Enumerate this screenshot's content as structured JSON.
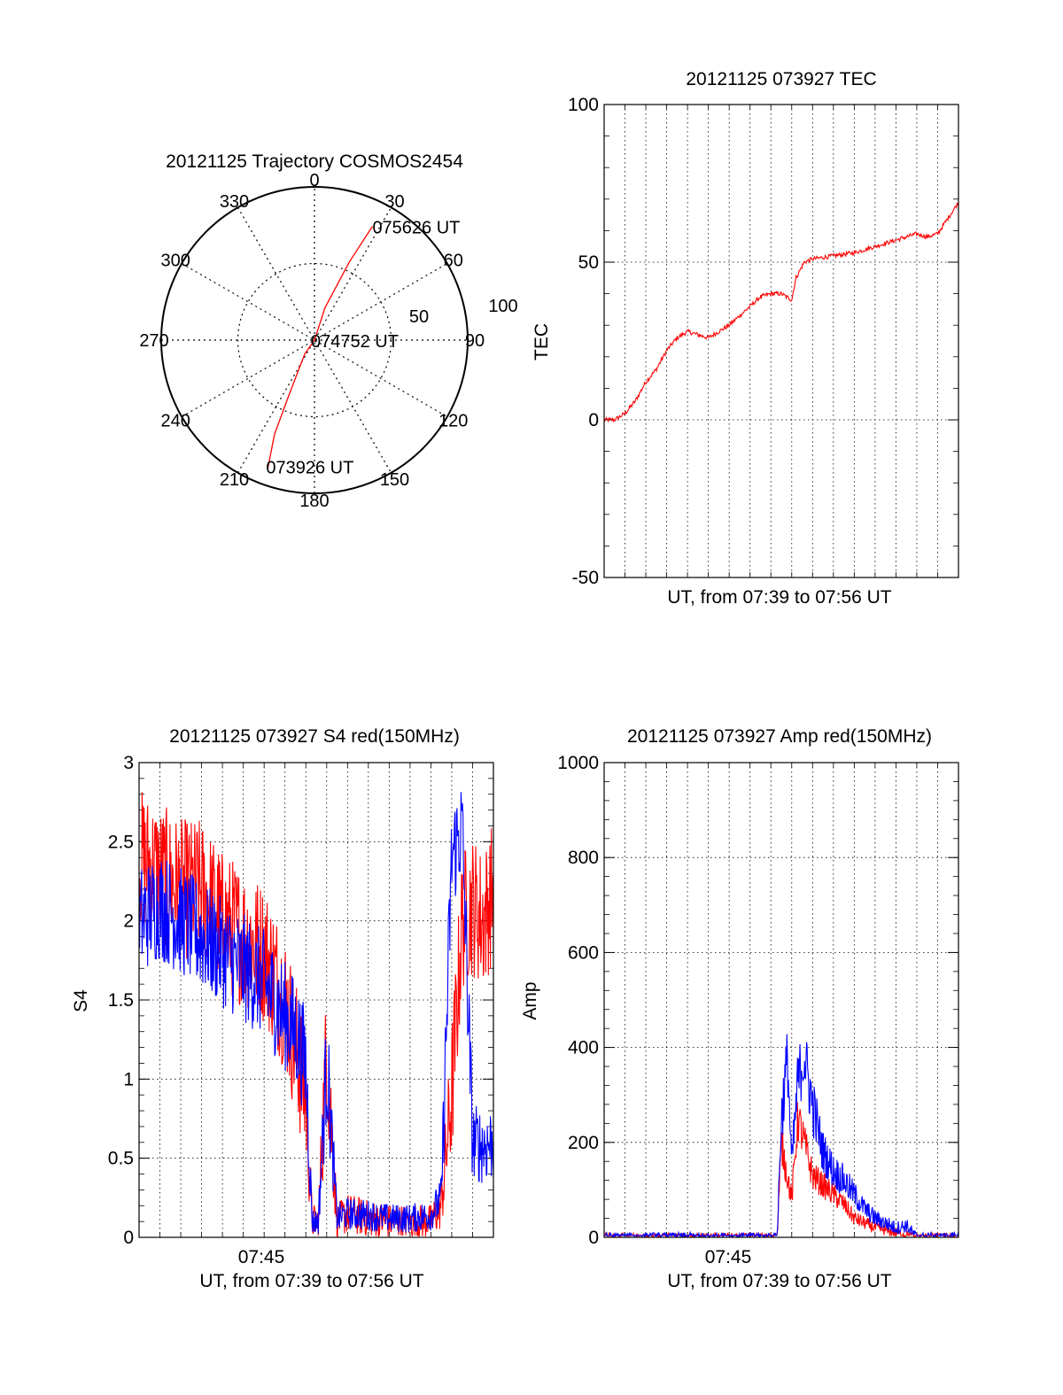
{
  "chart_data": [
    {
      "type": "polar",
      "title": "20121125 Trajectory COSMOS2454",
      "azimuth_labels": [
        "0",
        "30",
        "60",
        "90",
        "120",
        "150",
        "180",
        "210",
        "240",
        "270",
        "300",
        "330"
      ],
      "ring_labels": [
        "50",
        "100"
      ],
      "rlim": [
        0,
        100
      ],
      "grid": true,
      "series": [
        {
          "color": "#ff0000",
          "points": [
            {
              "az": 200,
              "el": 10
            },
            {
              "az": 203,
              "el": 30
            },
            {
              "az": 205,
              "el": 55
            },
            {
              "az": 215,
              "el": 80
            },
            {
              "az": 270,
              "el": 90
            },
            {
              "az": 18,
              "el": 70
            },
            {
              "az": 24,
              "el": 40
            },
            {
              "az": 27,
              "el": 15
            }
          ]
        }
      ],
      "annotations": [
        {
          "text": "075626 UT",
          "az": 27,
          "el": 15
        },
        {
          "text": "074752 UT",
          "az": 0,
          "el": 90
        },
        {
          "text": "073926 UT",
          "az": 200,
          "el": 10
        }
      ]
    },
    {
      "type": "line",
      "title": "20121125 073927 TEC",
      "xlabel": "UT, from 07:39 to 07:56 UT",
      "ylabel": "TEC",
      "xlim": [
        0,
        17
      ],
      "ylim": [
        -50,
        100
      ],
      "yticks": [
        "-50",
        "0",
        "50",
        "100"
      ],
      "grid": true,
      "series": [
        {
          "color": "#ff0000",
          "x": [
            0,
            0.5,
            1,
            1.5,
            2,
            2.5,
            3,
            3.5,
            4,
            4.5,
            5,
            5.5,
            6,
            6.5,
            7,
            7.5,
            8,
            8.5,
            9,
            9.2,
            9.6,
            10,
            11,
            12,
            13,
            14,
            15,
            15.5,
            16,
            16.3,
            16.7,
            17
          ],
          "y": [
            0,
            0,
            2,
            6,
            12,
            16,
            22,
            26,
            28,
            27,
            26,
            28,
            30,
            33,
            36,
            39,
            40,
            40,
            38,
            45,
            50,
            51,
            52,
            53,
            55,
            57,
            59,
            58,
            59,
            62,
            66,
            69
          ]
        }
      ]
    },
    {
      "type": "line",
      "title": "20121125 073927 S4 red(150MHz)",
      "xlabel": "UT, from 07:39 to 07:56 UT",
      "ylabel": "S4",
      "xtick_label": "07:45",
      "xlim": [
        0,
        17
      ],
      "ylim": [
        0,
        3
      ],
      "yticks": [
        "0",
        "0.5",
        "1",
        "1.5",
        "2",
        "2.5",
        "3"
      ],
      "grid": true,
      "series": [
        {
          "color": "#ff0000",
          "x": [
            0,
            1,
            2,
            3,
            4,
            5,
            6,
            7,
            7.5,
            8,
            8.3,
            8.6,
            9,
            9.5,
            10,
            11,
            12,
            13,
            14,
            14.5,
            15,
            15.5,
            16,
            16.5,
            17
          ],
          "y": [
            2.4,
            2.3,
            2.2,
            2.2,
            2.0,
            1.9,
            1.8,
            1.5,
            1.2,
            0.9,
            0.1,
            0.1,
            1.2,
            0.1,
            0.15,
            0.12,
            0.1,
            0.1,
            0.1,
            0.2,
            0.9,
            2.0,
            2.1,
            2.0,
            2.2
          ],
          "noise": 0.45
        },
        {
          "color": "#0000ff",
          "x": [
            0,
            1,
            2,
            3,
            4,
            5,
            6,
            7,
            7.5,
            8,
            8.3,
            8.6,
            9,
            9.5,
            10,
            11,
            12,
            13,
            14,
            14.5,
            15,
            15.5,
            16,
            16.5,
            17
          ],
          "y": [
            2.0,
            2.1,
            2.0,
            1.9,
            1.8,
            1.7,
            1.6,
            1.4,
            1.3,
            1.1,
            0.1,
            0.1,
            1.1,
            0.12,
            0.15,
            0.14,
            0.12,
            0.12,
            0.14,
            0.25,
            2.4,
            2.6,
            0.6,
            0.58,
            0.6
          ],
          "noise": 0.35
        }
      ]
    },
    {
      "type": "line",
      "title": "20121125 073927 Amp red(150MHz)",
      "xlabel": "UT, from 07:39 to 07:56 UT",
      "ylabel": "Amp",
      "xtick_label": "07:45",
      "xlim": [
        0,
        17
      ],
      "ylim": [
        0,
        1000
      ],
      "yticks": [
        "0",
        "200",
        "400",
        "600",
        "800",
        "1000"
      ],
      "grid": true,
      "series": [
        {
          "color": "#ff0000",
          "x": [
            0,
            8,
            8.3,
            8.5,
            8.7,
            9,
            9.3,
            9.6,
            10,
            10.5,
            11,
            11.5,
            12,
            12.5,
            13,
            13.5,
            14,
            14.5,
            15,
            17
          ],
          "y": [
            0,
            0,
            0,
            200,
            150,
            80,
            250,
            200,
            130,
            110,
            90,
            70,
            40,
            30,
            20,
            15,
            10,
            5,
            0,
            0
          ],
          "noise": 60
        },
        {
          "color": "#0000ff",
          "x": [
            0,
            8,
            8.3,
            8.5,
            8.8,
            9,
            9.3,
            9.6,
            10,
            10.5,
            11,
            11.5,
            12,
            12.5,
            13,
            13.5,
            14,
            14.5,
            15,
            17
          ],
          "y": [
            0,
            0,
            0,
            250,
            380,
            150,
            330,
            380,
            280,
            180,
            140,
            120,
            90,
            60,
            40,
            30,
            20,
            25,
            0,
            0
          ],
          "noise": 70
        }
      ]
    }
  ]
}
